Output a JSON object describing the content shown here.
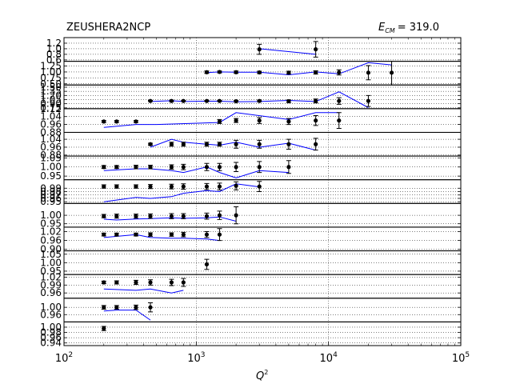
{
  "chart_data": {
    "type": "line",
    "title_left": "ZEUSHERA2NCP",
    "title_right_symbol": "E",
    "title_right_sub": "CM",
    "title_right_value": "= 319.0",
    "xlabel": "Q",
    "xlabel_sup": "2",
    "x_scale": "log",
    "xlim": [
      100,
      100000
    ],
    "x_ticks": [
      {
        "base": "10",
        "exp": "2",
        "value": 100
      },
      {
        "base": "10",
        "exp": "3",
        "value": 1000
      },
      {
        "base": "10",
        "exp": "4",
        "value": 10000
      },
      {
        "base": "10",
        "exp": "5",
        "value": 100000
      }
    ],
    "grid": true,
    "series_colors": {
      "data": "#000000",
      "theory": "#0000ff"
    },
    "panels": [
      {
        "ylim": [
          0.55,
          1.4
        ],
        "yticks": [
          0.6,
          0.8,
          1.0,
          1.2
        ],
        "ytick_labels": [
          "0.6",
          "0.8",
          "1.0",
          "1.2"
        ],
        "points": [
          [
            3000,
            0.98,
            0.18
          ],
          [
            8000,
            0.98,
            0.28
          ]
        ],
        "theory": [
          [
            3000,
            1.0
          ],
          [
            8000,
            0.8
          ]
        ]
      },
      {
        "ylim": [
          0.45,
          1.45
        ],
        "yticks": [
          0.5,
          0.75,
          1.0,
          1.25
        ],
        "ytick_labels": [
          "0.50",
          "0.75",
          "1.00",
          "1.25"
        ],
        "points": [
          [
            1200,
            0.99,
            0.05
          ],
          [
            1500,
            1.0,
            0.04
          ],
          [
            2000,
            0.99,
            0.05
          ],
          [
            3000,
            0.98,
            0.05
          ],
          [
            5000,
            0.97,
            0.06
          ],
          [
            8000,
            0.98,
            0.07
          ],
          [
            12000,
            0.98,
            0.11
          ],
          [
            20000,
            0.97,
            0.3
          ],
          [
            30000,
            0.97,
            0.62
          ]
        ],
        "theory": [
          [
            1200,
            0.97
          ],
          [
            1500,
            1.0
          ],
          [
            2000,
            0.99
          ],
          [
            3000,
            0.99
          ],
          [
            5000,
            0.88
          ],
          [
            8000,
            1.0
          ],
          [
            12000,
            0.92
          ],
          [
            20000,
            1.39
          ],
          [
            30000,
            1.3
          ]
        ]
      },
      {
        "ylim": [
          0.72,
          1.58
        ],
        "yticks": [
          0.75,
          0.9,
          1.05,
          1.2,
          1.35,
          1.5
        ],
        "ytick_labels": [
          "0.75",
          "0.90",
          "1.05",
          "1.20",
          "1.35",
          "1.50"
        ],
        "points": [
          [
            450,
            1.0,
            0.02
          ],
          [
            650,
            1.0,
            0.03
          ],
          [
            800,
            1.0,
            0.02
          ],
          [
            1200,
            1.0,
            0.02
          ],
          [
            1500,
            1.0,
            0.02
          ],
          [
            2000,
            0.99,
            0.03
          ],
          [
            3000,
            1.0,
            0.03
          ],
          [
            5000,
            0.99,
            0.05
          ],
          [
            8000,
            1.0,
            0.07
          ],
          [
            12000,
            1.0,
            0.12
          ],
          [
            20000,
            1.0,
            0.2
          ]
        ],
        "theory": [
          [
            450,
            0.98
          ],
          [
            650,
            1.01
          ],
          [
            800,
            0.98
          ],
          [
            1200,
            0.99
          ],
          [
            1500,
            0.99
          ],
          [
            2000,
            0.97
          ],
          [
            3000,
            0.98
          ],
          [
            5000,
            1.02
          ],
          [
            8000,
            0.98
          ],
          [
            12000,
            1.33
          ],
          [
            20000,
            0.76
          ]
        ]
      },
      {
        "ylim": [
          0.88,
          1.12
        ],
        "yticks": [
          0.88,
          0.96,
          1.04,
          1.12
        ],
        "ytick_labels": [
          "0.88",
          "0.96",
          "1.04",
          "1.12"
        ],
        "points": [
          [
            200,
            0.99,
            0.01
          ],
          [
            250,
            0.99,
            0.01
          ],
          [
            350,
            0.99,
            0.01
          ],
          [
            1500,
            0.99,
            0.02
          ],
          [
            2000,
            1.0,
            0.02
          ],
          [
            3000,
            1.0,
            0.03
          ],
          [
            5000,
            0.99,
            0.03
          ],
          [
            8000,
            1.0,
            0.05
          ],
          [
            12000,
            1.0,
            0.08
          ]
        ],
        "theory": [
          [
            200,
            0.93
          ],
          [
            350,
            0.96
          ],
          [
            500,
            0.96
          ],
          [
            1500,
            0.98
          ],
          [
            2000,
            1.08
          ],
          [
            5000,
            1.01
          ],
          [
            8000,
            1.08
          ],
          [
            12000,
            1.08
          ]
        ]
      },
      {
        "ylim": [
          0.87,
          1.11
        ],
        "yticks": [
          0.88,
          0.96,
          1.04
        ],
        "ytick_labels": [
          "0.88",
          "0.96",
          "1.04"
        ],
        "points": [
          [
            450,
            0.99,
            0.01
          ],
          [
            650,
            0.99,
            0.02
          ],
          [
            800,
            0.99,
            0.02
          ],
          [
            1200,
            0.99,
            0.02
          ],
          [
            1500,
            0.99,
            0.02
          ],
          [
            2000,
            0.99,
            0.04
          ],
          [
            3000,
            0.99,
            0.04
          ],
          [
            5000,
            0.99,
            0.05
          ],
          [
            8000,
            0.99,
            0.06
          ]
        ],
        "theory": [
          [
            450,
            0.96
          ],
          [
            650,
            1.04
          ],
          [
            800,
            1.01
          ],
          [
            1200,
            0.99
          ],
          [
            1500,
            0.98
          ],
          [
            2000,
            1.01
          ],
          [
            3000,
            0.96
          ],
          [
            5000,
            1.0
          ],
          [
            8000,
            0.93
          ]
        ]
      },
      {
        "ylim": [
          0.93,
          1.06
        ],
        "yticks": [
          0.95,
          1.0,
          1.05
        ],
        "ytick_labels": [
          "0.95",
          "1.00",
          "1.05"
        ],
        "points": [
          [
            200,
            1.0,
            0.008
          ],
          [
            250,
            1.0,
            0.008
          ],
          [
            350,
            1.0,
            0.01
          ],
          [
            450,
            1.0,
            0.01
          ],
          [
            650,
            1.0,
            0.012
          ],
          [
            800,
            1.0,
            0.015
          ],
          [
            1200,
            1.0,
            0.02
          ],
          [
            1500,
            1.0,
            0.02
          ],
          [
            2000,
            1.0,
            0.025
          ],
          [
            3000,
            1.0,
            0.03
          ],
          [
            5000,
            1.0,
            0.035
          ]
        ],
        "theory": [
          [
            200,
            0.98
          ],
          [
            350,
            0.99
          ],
          [
            450,
            0.99
          ],
          [
            650,
            0.98
          ],
          [
            800,
            0.97
          ],
          [
            1200,
            1.0
          ],
          [
            1500,
            0.97
          ],
          [
            2000,
            0.94
          ],
          [
            3000,
            0.98
          ],
          [
            5000,
            0.97
          ]
        ]
      },
      {
        "ylim": [
          0.945,
          1.015
        ],
        "yticks": [
          0.95,
          0.96,
          0.97,
          0.98,
          0.99
        ],
        "ytick_labels": [
          "0.95",
          "0.96",
          "0.97",
          "0.98",
          "0.99"
        ],
        "points": [
          [
            200,
            0.995,
            0.005
          ],
          [
            250,
            0.995,
            0.005
          ],
          [
            350,
            0.995,
            0.005
          ],
          [
            450,
            0.995,
            0.006
          ],
          [
            650,
            0.995,
            0.007
          ],
          [
            800,
            0.995,
            0.008
          ],
          [
            1200,
            0.995,
            0.009
          ],
          [
            1500,
            0.995,
            0.01
          ],
          [
            2000,
            0.997,
            0.012
          ],
          [
            3000,
            0.995,
            0.015
          ]
        ],
        "theory": [
          [
            200,
            0.95
          ],
          [
            350,
            0.963
          ],
          [
            450,
            0.96
          ],
          [
            650,
            0.965
          ],
          [
            800,
            0.975
          ],
          [
            1200,
            0.983
          ],
          [
            1500,
            0.98
          ],
          [
            2000,
            1.003
          ],
          [
            3000,
            0.994
          ]
        ]
      },
      {
        "ylim": [
          0.93,
          1.07
        ],
        "yticks": [
          0.95,
          1.0
        ],
        "ytick_labels": [
          "0.95",
          "1.00"
        ],
        "points": [
          [
            200,
            0.995,
            0.01
          ],
          [
            250,
            0.995,
            0.012
          ],
          [
            350,
            0.995,
            0.012
          ],
          [
            450,
            0.995,
            0.013
          ],
          [
            650,
            0.995,
            0.015
          ],
          [
            800,
            0.995,
            0.015
          ],
          [
            1200,
            0.995,
            0.018
          ],
          [
            1500,
            1.0,
            0.025
          ],
          [
            2000,
            1.0,
            0.05
          ]
        ],
        "theory": [
          [
            200,
            0.977
          ],
          [
            250,
            0.972
          ],
          [
            350,
            0.978
          ],
          [
            450,
            0.98
          ],
          [
            650,
            0.985
          ],
          [
            800,
            0.982
          ],
          [
            1200,
            0.985
          ],
          [
            1500,
            0.99
          ],
          [
            2000,
            0.965
          ]
        ]
      },
      {
        "ylim": [
          0.89,
          1.05
        ],
        "yticks": [
          0.9,
          0.96,
          1.02
        ],
        "ytick_labels": [
          "0.90",
          "0.96",
          "1.02"
        ],
        "points": [
          [
            200,
            1.0,
            0.01
          ],
          [
            250,
            1.0,
            0.01
          ],
          [
            350,
            1.0,
            0.01
          ],
          [
            450,
            1.0,
            0.012
          ],
          [
            650,
            1.0,
            0.012
          ],
          [
            800,
            1.0,
            0.015
          ],
          [
            1200,
            1.0,
            0.02
          ],
          [
            1500,
            1.0,
            0.04
          ]
        ],
        "theory": [
          [
            200,
            0.98
          ],
          [
            350,
            1.0
          ],
          [
            450,
            0.98
          ],
          [
            650,
            0.975
          ],
          [
            800,
            0.975
          ],
          [
            1200,
            0.97
          ],
          [
            1500,
            0.96
          ]
        ]
      },
      {
        "ylim": [
          0.93,
          1.07
        ],
        "yticks": [
          0.95,
          1.0,
          1.05
        ],
        "ytick_labels": [
          "0.95",
          "1.00",
          "1.05"
        ],
        "points": [
          [
            1200,
            0.99,
            0.03
          ]
        ],
        "theory": []
      },
      {
        "ylim": [
          0.94,
          1.03
        ],
        "yticks": [
          0.96,
          0.99,
          1.02
        ],
        "ytick_labels": [
          "0.96",
          "0.99",
          "1.02"
        ],
        "points": [
          [
            200,
            1.0,
            0.005
          ],
          [
            250,
            1.0,
            0.006
          ],
          [
            350,
            1.0,
            0.008
          ],
          [
            450,
            1.0,
            0.01
          ],
          [
            650,
            1.0,
            0.012
          ],
          [
            800,
            1.0,
            0.015
          ]
        ],
        "theory": [
          [
            200,
            0.975
          ],
          [
            350,
            0.97
          ],
          [
            450,
            0.975
          ],
          [
            650,
            0.96
          ],
          [
            800,
            0.97
          ]
        ]
      },
      {
        "ylim": [
          0.92,
          1.05
        ],
        "yticks": [
          0.96,
          1.0
        ],
        "ytick_labels": [
          "0.96",
          "1.00"
        ],
        "points": [
          [
            200,
            1.0,
            0.01
          ],
          [
            250,
            1.0,
            0.01
          ],
          [
            350,
            1.0,
            0.012
          ],
          [
            450,
            1.0,
            0.025
          ]
        ],
        "theory": [
          [
            200,
            0.98
          ],
          [
            250,
            0.985
          ],
          [
            350,
            0.985
          ],
          [
            450,
            0.93
          ]
        ]
      },
      {
        "ylim": [
          0.93,
          1.02
        ],
        "yticks": [
          0.94,
          0.96,
          0.98,
          1.0
        ],
        "ytick_labels": [
          "0.94",
          "0.96",
          "0.98",
          "1.00"
        ],
        "points": [
          [
            200,
            0.995,
            0.008
          ]
        ],
        "theory": []
      }
    ]
  }
}
